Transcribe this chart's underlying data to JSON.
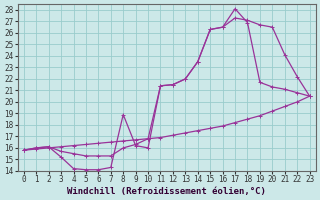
{
  "xlabel": "Windchill (Refroidissement éolien,°C)",
  "ylabel": "",
  "bg_color": "#cce8e8",
  "line_color": "#993399",
  "grid_color": "#99cccc",
  "xlim": [
    -0.5,
    23.5
  ],
  "ylim": [
    14,
    28.5
  ],
  "xticks": [
    0,
    1,
    2,
    3,
    4,
    5,
    6,
    7,
    8,
    9,
    10,
    11,
    12,
    13,
    14,
    15,
    16,
    17,
    18,
    19,
    20,
    21,
    22,
    23
  ],
  "yticks": [
    14,
    15,
    16,
    17,
    18,
    19,
    20,
    21,
    22,
    23,
    24,
    25,
    26,
    27,
    28
  ],
  "line1_x": [
    0,
    1,
    2,
    3,
    4,
    5,
    6,
    7,
    8,
    9,
    10,
    11,
    12,
    13,
    14,
    15,
    16,
    17,
    18,
    19,
    20,
    21,
    22,
    23
  ],
  "line1_y": [
    15.8,
    16.0,
    16.1,
    15.2,
    14.2,
    14.1,
    14.1,
    14.3,
    18.9,
    16.2,
    16.0,
    21.4,
    21.5,
    22.0,
    23.5,
    26.3,
    26.5,
    28.1,
    26.9,
    21.7,
    21.3,
    21.1,
    20.8,
    20.5
  ],
  "line2_x": [
    0,
    1,
    2,
    3,
    4,
    5,
    6,
    7,
    8,
    9,
    10,
    11,
    12,
    13,
    14,
    15,
    16,
    17,
    18,
    19,
    20,
    21,
    22,
    23
  ],
  "line2_y": [
    15.8,
    16.0,
    16.1,
    15.7,
    15.5,
    15.3,
    15.3,
    15.3,
    16.0,
    16.3,
    16.8,
    21.4,
    21.5,
    22.0,
    23.5,
    26.3,
    26.5,
    27.3,
    27.1,
    26.7,
    26.5,
    24.1,
    22.2,
    20.5
  ],
  "line3_x": [
    0,
    1,
    2,
    3,
    4,
    5,
    6,
    7,
    8,
    9,
    10,
    11,
    12,
    13,
    14,
    15,
    16,
    17,
    18,
    19,
    20,
    21,
    22,
    23
  ],
  "line3_y": [
    15.8,
    15.9,
    16.0,
    16.1,
    16.2,
    16.3,
    16.4,
    16.5,
    16.6,
    16.7,
    16.8,
    16.9,
    17.1,
    17.3,
    17.5,
    17.7,
    17.9,
    18.2,
    18.5,
    18.8,
    19.2,
    19.6,
    20.0,
    20.5
  ],
  "xlabel_fontsize": 6.5,
  "tick_fontsize": 5.5,
  "spine_color": "#666666"
}
